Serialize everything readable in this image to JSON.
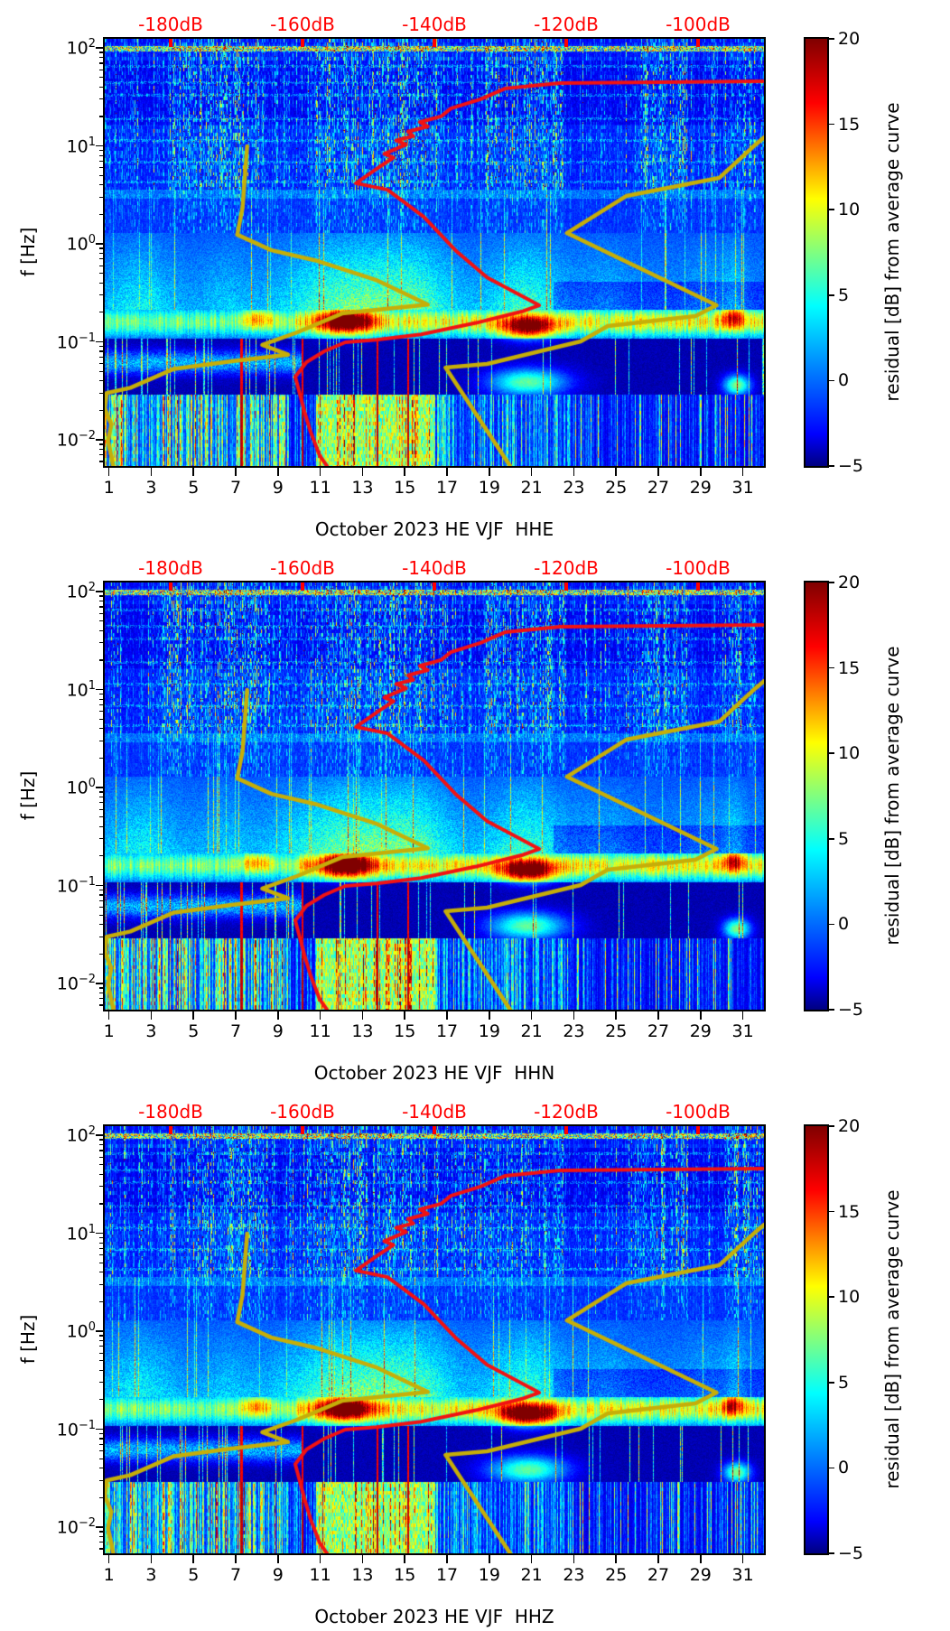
{
  "figure": {
    "background": "#ffffff",
    "colors": {
      "top_axis_red": "#ff0000",
      "red_curve": "#f21212",
      "yellow_curve": "#c6ae08",
      "axis_black": "#000000"
    }
  },
  "top_axis": {
    "labels": [
      "-180dB",
      "-160dB",
      "-140dB",
      "-120dB",
      "-100dB"
    ],
    "values_dB": [
      -180,
      -160,
      -140,
      -120,
      -100
    ],
    "range_dB": [
      -190,
      -90
    ]
  },
  "y_axis": {
    "label": "f [Hz]",
    "ticks": [
      {
        "base": "10",
        "exp": "2",
        "f": 100
      },
      {
        "base": "10",
        "exp": "1",
        "f": 10
      },
      {
        "base": "10",
        "exp": "0",
        "f": 1
      },
      {
        "base": "10",
        "exp": "−1",
        "f": 0.1
      },
      {
        "base": "10",
        "exp": "−2",
        "f": 0.01
      }
    ],
    "range_Hz": [
      0.0054,
      124
    ]
  },
  "x_axis": {
    "tick_labels": [
      "1",
      "3",
      "5",
      "7",
      "9",
      "11",
      "13",
      "15",
      "17",
      "19",
      "21",
      "23",
      "25",
      "27",
      "29",
      "31"
    ],
    "tick_days": [
      1,
      3,
      5,
      7,
      9,
      11,
      13,
      15,
      17,
      19,
      21,
      23,
      25,
      27,
      29,
      31
    ],
    "range_days": [
      0.8,
      32.0
    ]
  },
  "colorbar": {
    "label": "residual [dB] from average curve",
    "tick_labels": [
      "20",
      "15",
      "10",
      "5",
      "0",
      "−5"
    ],
    "tick_values": [
      20,
      15,
      10,
      5,
      0,
      -5
    ],
    "range": [
      -5,
      20
    ],
    "colormap": "jet"
  },
  "panels": [
    {
      "channel": "HHE",
      "title": "October 2023 HE VJF  HHE",
      "seed": 11,
      "blob_gains": [
        1.0,
        0.92
      ]
    },
    {
      "channel": "HHN",
      "title": "October 2023 HE VJF  HHN",
      "seed": 23,
      "blob_gains": [
        1.0,
        1.0
      ]
    },
    {
      "channel": "HHZ",
      "title": "October 2023 HE VJF  HHZ",
      "seed": 37,
      "blob_gains": [
        0.95,
        1.08
      ]
    }
  ],
  "chart_data": {
    "type": "heatmap",
    "description": "Spectrogram of daily PSD residuals (dB relative to the average curve) vs frequency for station HE VJF, channels HHE/HHN/HHZ, October 2023. Jet colormap spans -5 to 20 dB. Red curve = average spectrum and yellow curves = reference noise-model curves, all plotted against the red top axis in dB.",
    "x": "day of October 2023",
    "y": "frequency [Hz], log scale 0.0054 - 124",
    "z": "residual [dB] from average curve, -5 to 20",
    "overlay_curves": {
      "red_average_spectrum_dB_Hz": [
        [
          -156.3,
          0.0054
        ],
        [
          -157.4,
          0.0069
        ],
        [
          -158.8,
          0.0122
        ],
        [
          -159.7,
          0.0194
        ],
        [
          -161.1,
          0.044
        ],
        [
          -159.4,
          0.062
        ],
        [
          -156.7,
          0.08
        ],
        [
          -153.5,
          0.099
        ],
        [
          -148.8,
          0.105
        ],
        [
          -142.0,
          0.119
        ],
        [
          -133.7,
          0.156
        ],
        [
          -126.5,
          0.206
        ],
        [
          -124.1,
          0.236
        ],
        [
          -132.0,
          0.455
        ],
        [
          -136.8,
          0.86
        ],
        [
          -141.6,
          1.89
        ],
        [
          -147.1,
          3.57
        ],
        [
          -151.9,
          4.16
        ],
        [
          -148.4,
          6.07
        ],
        [
          -146.2,
          7.6
        ],
        [
          -147.6,
          8.3
        ],
        [
          -144.3,
          10.3
        ],
        [
          -145.8,
          11.4
        ],
        [
          -143.2,
          12.6
        ],
        [
          -144.0,
          14.0
        ],
        [
          -141.0,
          15.8
        ],
        [
          -142.2,
          17.5
        ],
        [
          -139.0,
          20.0
        ],
        [
          -137.5,
          24.1
        ],
        [
          -133.0,
          30.0
        ],
        [
          -129.3,
          38.5
        ],
        [
          -121.0,
          43.8
        ],
        [
          -90.2,
          45.7
        ]
      ],
      "yellow_low_model_dB_Hz": [
        [
          -188.7,
          0.0054
        ],
        [
          -189.5,
          0.0098
        ],
        [
          -189.0,
          0.0143
        ],
        [
          -190.0,
          0.021
        ],
        [
          -189.7,
          0.03
        ],
        [
          -186.1,
          0.034
        ],
        [
          -179.5,
          0.053
        ],
        [
          -171.0,
          0.063
        ],
        [
          -162.2,
          0.074
        ],
        [
          -166.1,
          0.093
        ],
        [
          -160.8,
          0.125
        ],
        [
          -154.0,
          0.195
        ],
        [
          -141.0,
          0.24
        ],
        [
          -148.9,
          0.43
        ],
        [
          -158.1,
          0.68
        ],
        [
          -164.7,
          0.86
        ],
        [
          -169.9,
          1.24
        ],
        [
          -169.1,
          2.34
        ],
        [
          -168.4,
          9.9
        ]
      ],
      "yellow_high_model_dB_Hz": [
        [
          -128.5,
          0.0054
        ],
        [
          -138.3,
          0.0546
        ],
        [
          -132.0,
          0.0594
        ],
        [
          -117.8,
          0.101
        ],
        [
          -113.7,
          0.145
        ],
        [
          -100.4,
          0.183
        ],
        [
          -97.2,
          0.236
        ],
        [
          -119.9,
          1.29
        ],
        [
          -110.9,
          3.08
        ],
        [
          -96.8,
          4.71
        ],
        [
          -91.3,
          10.3
        ],
        [
          -90.0,
          12.2
        ]
      ]
    },
    "hotspots": [
      {
        "day": 12.2,
        "f_hz": 0.165,
        "sigma_days": 0.95,
        "sigma_logf": 0.095,
        "amp": 0.66,
        "peak_residual_dB": 20
      },
      {
        "day": 20.8,
        "f_hz": 0.142,
        "sigma_days": 0.95,
        "sigma_logf": 0.085,
        "amp": 0.6,
        "peak_residual_dB": 19
      },
      {
        "day": 8.0,
        "f_hz": 0.176,
        "sigma_days": 0.55,
        "sigma_logf": 0.075,
        "amp": 0.26,
        "peak_residual_dB": 11
      },
      {
        "day": 30.55,
        "f_hz": 0.183,
        "sigma_days": 0.4,
        "sigma_logf": 0.085,
        "amp": 0.38,
        "peak_residual_dB": 13
      },
      {
        "day": 20.8,
        "f_hz": 0.039,
        "sigma_days": 1.3,
        "sigma_logf": 0.1,
        "amp": 0.42,
        "peak_residual_dB": 12
      },
      {
        "day": 30.7,
        "f_hz": 0.0365,
        "sigma_days": 0.45,
        "sigma_logf": 0.075,
        "amp": 0.45,
        "peak_residual_dB": 13
      }
    ],
    "features": {
      "high_noise_day_ranges": [
        [
          3.8,
          8.6
        ],
        [
          10.8,
          16.4
        ],
        [
          18.8,
          22.6
        ],
        [
          25.8,
          28.4
        ],
        [
          30.1,
          31.6
        ]
      ],
      "quiet_day_ranges": [
        [
          1.0,
          3.2
        ],
        [
          22.6,
          25.8
        ],
        [
          28.4,
          30.1
        ]
      ],
      "red_vertical_lines_days": [
        7.25,
        10.15,
        13.7,
        15.15
      ],
      "yellow_low_freq_patch_days": [
        10.8,
        16.4
      ]
    }
  }
}
